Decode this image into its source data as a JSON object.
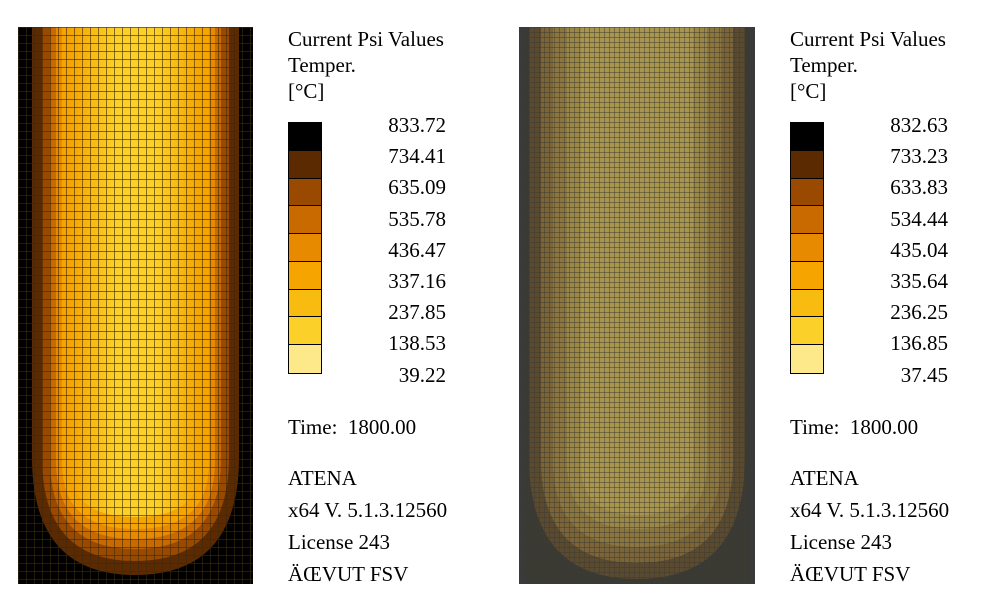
{
  "colors": {
    "scale": [
      "#000000",
      "#5c2a00",
      "#9a4a00",
      "#c86a00",
      "#e88a00",
      "#f6a400",
      "#f8bc10",
      "#fbd028",
      "#fde88a"
    ]
  },
  "left_panel": {
    "title_lines": [
      "Current Psi Values",
      "Temper.",
      "[°C]"
    ],
    "scale_values": [
      "833.72",
      "734.41",
      "635.09",
      "535.78",
      "436.47",
      "337.16",
      "237.85",
      "138.53",
      "39.22"
    ],
    "time_label": "Time:",
    "time_value": "1800.00",
    "info_lines": [
      "ATENA",
      "x64 V. 5.1.3.12560",
      "License 243",
      "ÄŒVUT FSV"
    ]
  },
  "right_panel": {
    "title_lines": [
      "Current Psi Values",
      "Temper.",
      "[°C]"
    ],
    "scale_values": [
      "832.63",
      "733.23",
      "633.83",
      "534.44",
      "435.04",
      "335.64",
      "236.25",
      "136.85",
      "37.45"
    ],
    "time_label": "Time:",
    "time_value": "1800.00",
    "info_lines": [
      "ATENA",
      "x64 V. 5.1.3.12560",
      "License 243",
      "ÄŒVUT FSV"
    ]
  }
}
